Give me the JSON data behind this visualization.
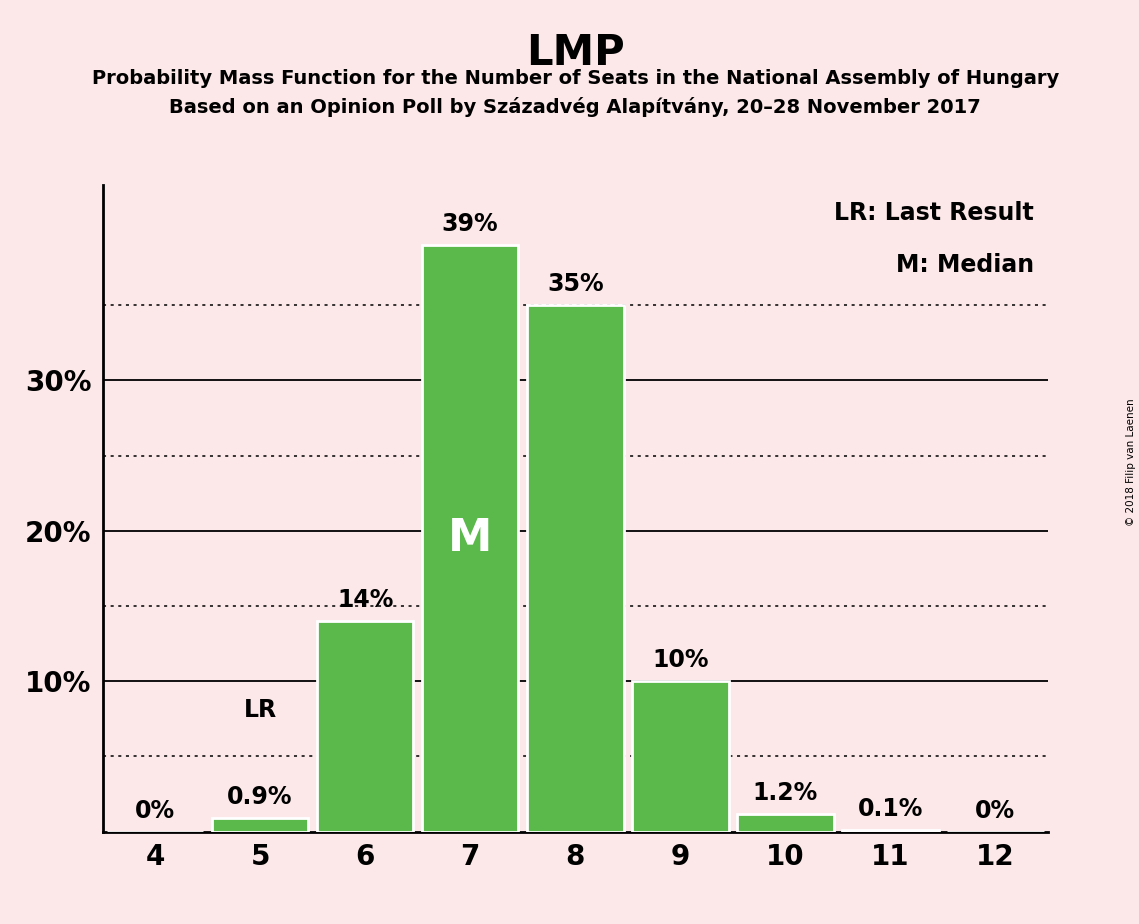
{
  "title": "LMP",
  "subtitle1": "Probability Mass Function for the Number of Seats in the National Assembly of Hungary",
  "subtitle2": "Based on an Opinion Poll by Századvég Alapítvány, 20–28 November 2017",
  "copyright": "© 2018 Filip van Laenen",
  "seats": [
    4,
    5,
    6,
    7,
    8,
    9,
    10,
    11,
    12
  ],
  "probabilities": [
    0.0,
    0.009,
    0.14,
    0.39,
    0.35,
    0.1,
    0.012,
    0.001,
    0.0
  ],
  "labels": [
    "0%",
    "0.9%",
    "14%",
    "39%",
    "35%",
    "10%",
    "1.2%",
    "0.1%",
    "0%"
  ],
  "bar_color": "#5ab94a",
  "bar_edge_color": "#ffffff",
  "background_color": "#fce8e8",
  "median_seat": 7,
  "median_label": "M",
  "lr_seat": 5,
  "lr_label": "LR",
  "legend_lr": "LR: Last Result",
  "legend_m": "M: Median",
  "yticks": [
    0.0,
    0.1,
    0.2,
    0.3
  ],
  "ytick_labels": [
    "",
    "10%",
    "20%",
    "30%"
  ],
  "dotted_yticks": [
    0.05,
    0.15,
    0.25,
    0.35
  ],
  "solid_yticks": [
    0.1,
    0.2,
    0.3
  ],
  "ylim": [
    0,
    0.43
  ],
  "xlim": [
    3.5,
    12.5
  ]
}
